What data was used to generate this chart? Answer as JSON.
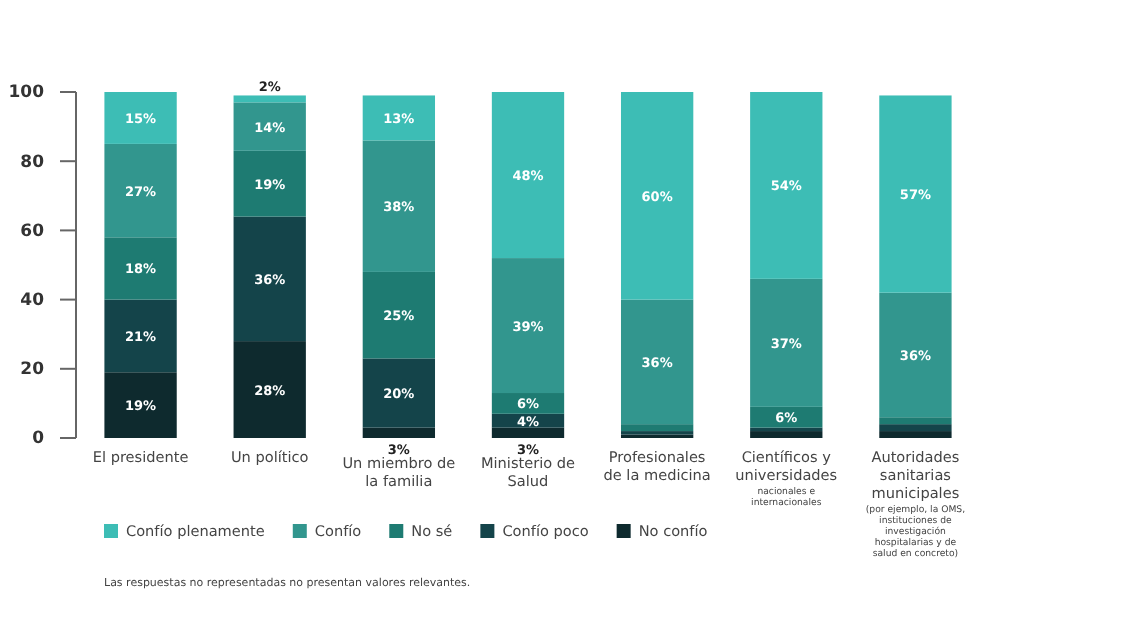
{
  "chart_data": {
    "type": "bar",
    "stacked": true,
    "categories": [
      "El presidente",
      "Un político",
      "Un miembro de la familia",
      "Ministerio de Salud",
      "Profesionales de la medicina",
      "Científicos y universidades",
      "Autoridades sanitarias municipales"
    ],
    "series": [
      {
        "name": "No confío",
        "color": "#0e2a2e",
        "values": [
          19,
          28,
          3,
          3,
          1,
          2,
          2
        ],
        "value_labels": [
          "19%",
          "28%",
          "3%",
          "3%",
          null,
          null,
          null
        ]
      },
      {
        "name": "Confío poco",
        "color": "#14444a",
        "values": [
          21,
          36,
          20,
          4,
          1,
          1,
          2
        ],
        "value_labels": [
          "21%",
          "36%",
          "20%",
          "4%",
          null,
          null,
          null
        ]
      },
      {
        "name": "No sé",
        "color": "#1e7b72",
        "values": [
          18,
          19,
          25,
          6,
          2,
          6,
          2
        ],
        "value_labels": [
          "18%",
          "19%",
          "25%",
          "6%",
          null,
          "6%",
          null
        ]
      },
      {
        "name": "Confío",
        "color": "#32968e",
        "values": [
          27,
          14,
          38,
          39,
          36,
          37,
          36
        ],
        "value_labels": [
          "27%",
          "14%",
          "38%",
          "39%",
          "36%",
          "37%",
          "36%"
        ]
      },
      {
        "name": "Confío plenamente",
        "color": "#3dbdb5",
        "values": [
          15,
          2,
          13,
          48,
          60,
          54,
          57
        ],
        "value_labels": [
          "15%",
          "2%",
          "13%",
          "48%",
          "60%",
          "54%",
          "57%"
        ]
      }
    ],
    "ylim": [
      0,
      100
    ],
    "yticks": [
      0,
      20,
      40,
      60,
      80,
      100
    ],
    "grid": false,
    "legend": "bottom",
    "annotations": [
      "nacionales e internacionales",
      "(por ejemplo, la OMS, instituciones de investigación hospitalarias y de salud en concreto)",
      "Las respuestas no representadas no presentan valores relevantes."
    ]
  }
}
